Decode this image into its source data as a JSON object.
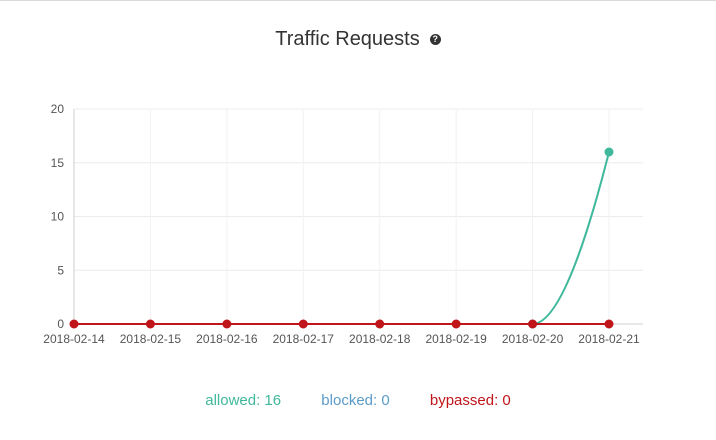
{
  "title": "Traffic Requests",
  "help_icon": "question-circle-icon",
  "chart_data": {
    "type": "line",
    "x": [
      "2018-02-14",
      "2018-02-15",
      "2018-02-16",
      "2018-02-17",
      "2018-02-18",
      "2018-02-19",
      "2018-02-20",
      "2018-02-21"
    ],
    "ylim": [
      0,
      20
    ],
    "yticks": [
      0,
      5,
      10,
      15,
      20
    ],
    "grid": true,
    "series": [
      {
        "name": "allowed",
        "color": "#3fb89c",
        "values": [
          null,
          null,
          null,
          null,
          null,
          null,
          0,
          16
        ]
      },
      {
        "name": "blocked",
        "color": "#5b9bc8",
        "values": [
          0,
          0,
          0,
          0,
          0,
          0,
          0,
          0
        ]
      },
      {
        "name": "bypassed",
        "color": "#c0151a",
        "values": [
          0,
          0,
          0,
          0,
          0,
          0,
          0,
          0
        ]
      }
    ]
  },
  "legend": [
    {
      "name": "allowed",
      "label": "allowed: 16",
      "color": "#3fb89c"
    },
    {
      "name": "blocked",
      "label": "blocked: 0",
      "color": "#5b9bc8"
    },
    {
      "name": "bypassed",
      "label": "bypassed: 0",
      "color": "#c0151a"
    }
  ]
}
